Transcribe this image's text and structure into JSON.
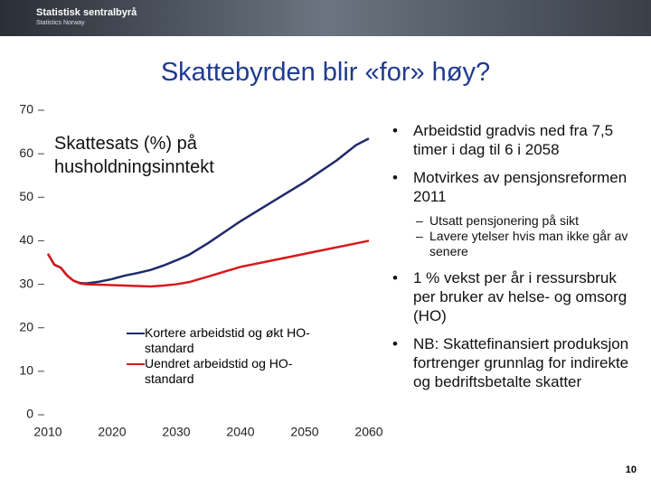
{
  "header": {
    "logo": "Statistisk sentralbyrå",
    "logo_sub": "Statistics Norway"
  },
  "title": "Skattebyrden blir «for» høy?",
  "chart_data": {
    "type": "line",
    "annotation": "Skattesats (%) på husholdningsinntekt",
    "x": [
      2010,
      2011,
      2012,
      2013,
      2014,
      2015,
      2016,
      2018,
      2020,
      2022,
      2024,
      2026,
      2028,
      2030,
      2032,
      2035,
      2040,
      2045,
      2050,
      2055,
      2058,
      2060
    ],
    "series": [
      {
        "name": "Kortere arbeidstid og økt HO-standard",
        "color": "#1f2a6b",
        "values": [
          37,
          34.5,
          33.8,
          32,
          30.8,
          30.3,
          30.2,
          30.6,
          31.2,
          32,
          32.6,
          33.3,
          34.3,
          35.5,
          36.8,
          39.5,
          44.5,
          49,
          53.5,
          58.5,
          62,
          63.5
        ]
      },
      {
        "name": "Uendret arbeidstid og HO-standard",
        "color": "#d7191c",
        "values": [
          37,
          34.5,
          33.8,
          32,
          30.8,
          30.2,
          30,
          29.9,
          29.8,
          29.7,
          29.6,
          29.5,
          29.7,
          30,
          30.5,
          31.8,
          34,
          35.5,
          37,
          38.5,
          39.4,
          40
        ]
      }
    ],
    "xlim": [
      2010,
      2060
    ],
    "ylim": [
      0,
      70
    ],
    "xticks": [
      2010,
      2020,
      2030,
      2040,
      2050,
      2060
    ],
    "yticks": [
      0,
      10,
      20,
      30,
      40,
      50,
      60,
      70
    ]
  },
  "bullets": [
    {
      "text": "Arbeidstid gradvis ned fra 7,5 timer i dag til 6 i 2058"
    },
    {
      "text": "Motvirkes av pensjonsreformen 2011",
      "sub": [
        "Utsatt pensjonering på sikt",
        "Lavere ytelser hvis man ikke går av senere"
      ]
    },
    {
      "text": "1 % vekst per år i ressursbruk per bruker av helse- og omsorg (HO)"
    },
    {
      "text": "NB: Skattefinansiert produksjon fortrenger grunnlag for indirekte og bedriftsbetalte skatter"
    }
  ],
  "page_number": "10"
}
